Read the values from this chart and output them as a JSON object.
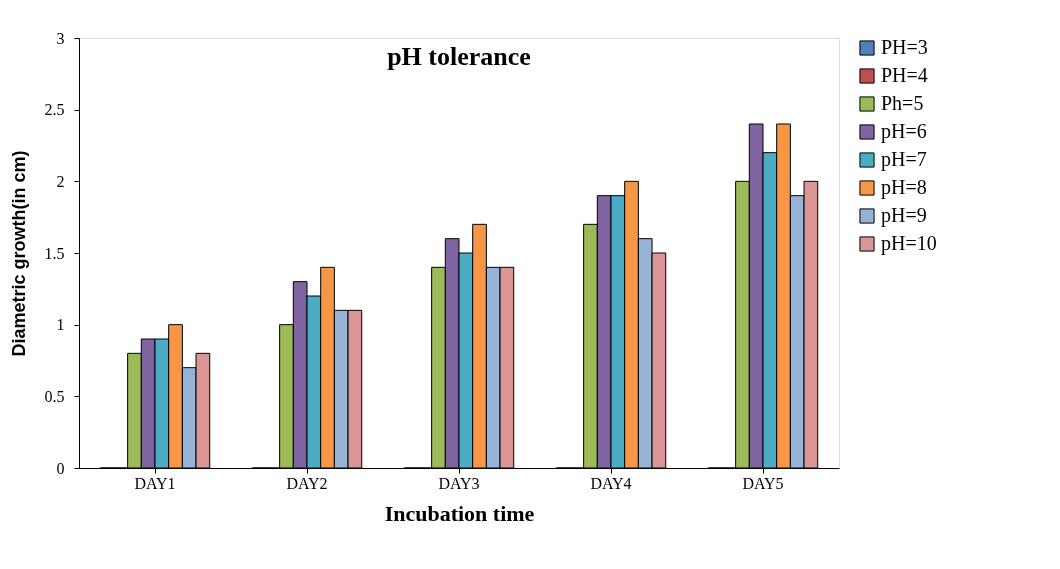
{
  "chart_data": {
    "type": "bar",
    "title": "pH tolerance",
    "xlabel": "Incubation time",
    "ylabel": "Diametric growth(in cm)",
    "categories": [
      "DAY1",
      "DAY2",
      "DAY3",
      "DAY4",
      "DAY5"
    ],
    "series": [
      {
        "name": "PH=3",
        "color": "#4f81bd",
        "values": [
          0,
          0,
          0,
          0,
          0
        ]
      },
      {
        "name": "PH=4",
        "color": "#c0504d",
        "values": [
          0,
          0,
          0,
          0,
          0
        ]
      },
      {
        "name": "Ph=5",
        "color": "#9bbb59",
        "values": [
          0.8,
          1.0,
          1.4,
          1.7,
          2.0
        ]
      },
      {
        "name": "pH=6",
        "color": "#8064a2",
        "values": [
          0.9,
          1.3,
          1.6,
          1.9,
          2.4
        ]
      },
      {
        "name": "pH=7",
        "color": "#4bacc6",
        "values": [
          0.9,
          1.2,
          1.5,
          1.9,
          2.2
        ]
      },
      {
        "name": "pH=8",
        "color": "#f79646",
        "values": [
          1.0,
          1.4,
          1.7,
          2.0,
          2.4
        ]
      },
      {
        "name": "pH=9",
        "color": "#95b3d7",
        "values": [
          0.7,
          1.1,
          1.4,
          1.6,
          1.9
        ]
      },
      {
        "name": "pH=10",
        "color": "#d99694",
        "values": [
          0.8,
          1.1,
          1.4,
          1.5,
          2.0
        ]
      }
    ],
    "ylim": [
      0,
      3
    ],
    "yticks": [
      0,
      0.5,
      1,
      1.5,
      2,
      2.5,
      3
    ],
    "grid": false,
    "legend": "right"
  }
}
